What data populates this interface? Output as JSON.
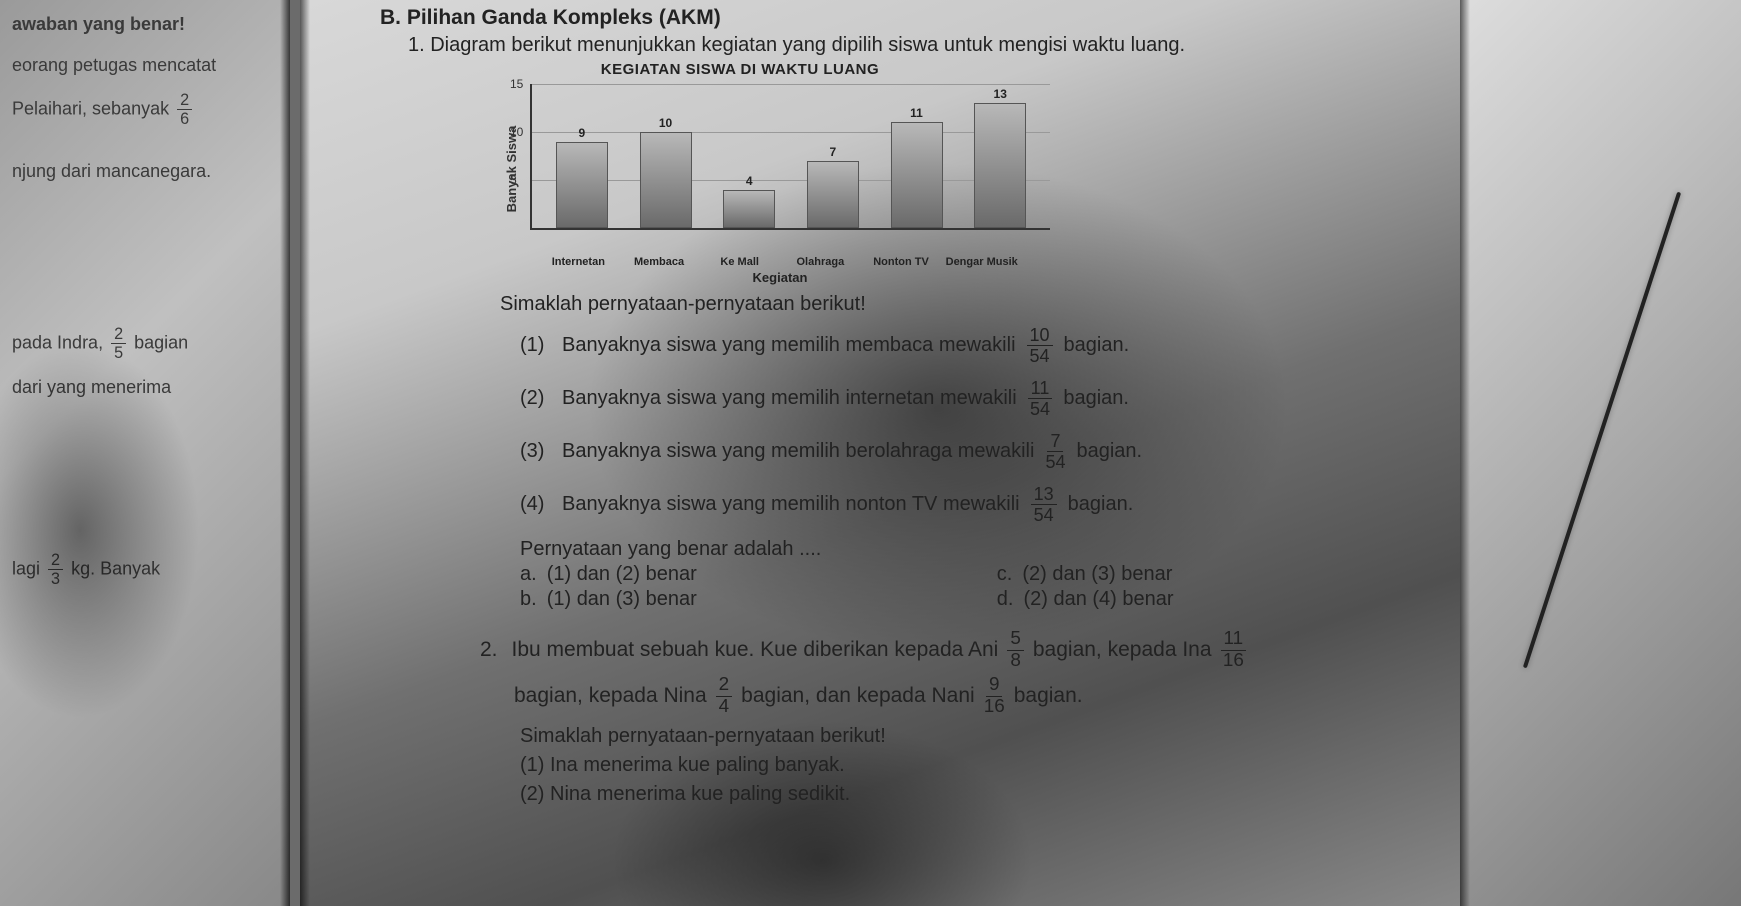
{
  "left": {
    "l1": "awaban yang benar!",
    "l2": "eorang petugas mencatat",
    "l3a": "Pelaihari, sebanyak",
    "l3_num": "2",
    "l3_den": "6",
    "l4": "njung dari mancanegara.",
    "l5a": "pada Indra,",
    "l5_num": "2",
    "l5_den": "5",
    "l5b": "bagian",
    "l6": "dari yang menerima",
    "l7a": "lagi",
    "l7_num": "2",
    "l7_den": "3",
    "l7b": "kg. Banyak"
  },
  "main": {
    "section": "B. Pilihan Ganda Kompleks (AKM)",
    "q1_prompt": "1.  Diagram berikut menunjukkan kegiatan yang dipilih siswa untuk mengisi waktu luang.",
    "chart": {
      "title": "KEGIATAN SISWA DI WAKTU LUANG",
      "ylabel": "Banyak Siswa",
      "xlabel": "Kegiatan",
      "ymax": 15,
      "yticks": [
        5,
        10,
        15
      ],
      "categories": [
        "Internetan",
        "Membaca",
        "Ke Mall",
        "Olahraga",
        "Nonton TV",
        "Dengar Musik"
      ],
      "values": [
        9,
        10,
        4,
        7,
        11,
        13
      ],
      "bar_color_top": "#b8b8b8",
      "bar_color_bot": "#6a6a6a",
      "grid_color": "#999999"
    },
    "stmt_intro": "Simaklah pernyataan-pernyataan berikut!",
    "s1_n": "(1)",
    "s1_a": "Banyaknya siswa yang memilih membaca mewakili",
    "s1_num": "10",
    "s1_den": "54",
    "s1_b": "bagian.",
    "s2_n": "(2)",
    "s2_a": "Banyaknya siswa yang memilih internetan mewakili",
    "s2_num": "11",
    "s2_den": "54",
    "s2_b": "bagian.",
    "s3_n": "(3)",
    "s3_a": "Banyaknya siswa yang memilih berolahraga mewakili",
    "s3_num": "7",
    "s3_den": "54",
    "s3_b": "bagian.",
    "s4_n": "(4)",
    "s4_a": "Banyaknya siswa yang memilih nonton TV mewakili",
    "s4_num": "13",
    "s4_den": "54",
    "s4_b": "bagian.",
    "opts_intro": "Pernyataan yang benar adalah ....",
    "oa_l": "a.",
    "oa": "(1) dan (2) benar",
    "ob_l": "b.",
    "ob": "(1) dan (3) benar",
    "oc_l": "c.",
    "oc": "(2) dan (3) benar",
    "od_l": "d.",
    "od": "(2) dan (4) benar",
    "q2_n": "2.",
    "q2_a": "Ibu membuat sebuah kue. Kue diberikan kepada Ani",
    "q2_f1n": "5",
    "q2_f1d": "8",
    "q2_b": "bagian, kepada Ina",
    "q2_f2n": "11",
    "q2_f2d": "16",
    "q2_c": "bagian, kepada Nina",
    "q2_f3n": "2",
    "q2_f3d": "4",
    "q2_d": "bagian, dan kepada Nani",
    "q2_f4n": "9",
    "q2_f4d": "16",
    "q2_e": "bagian.",
    "q2_sub_intro": "Simaklah pernyataan-pernyataan berikut!",
    "q2_s1": "(1)  Ina menerima kue paling banyak.",
    "q2_s2": "(2)  Nina menerima kue paling sedikit."
  }
}
